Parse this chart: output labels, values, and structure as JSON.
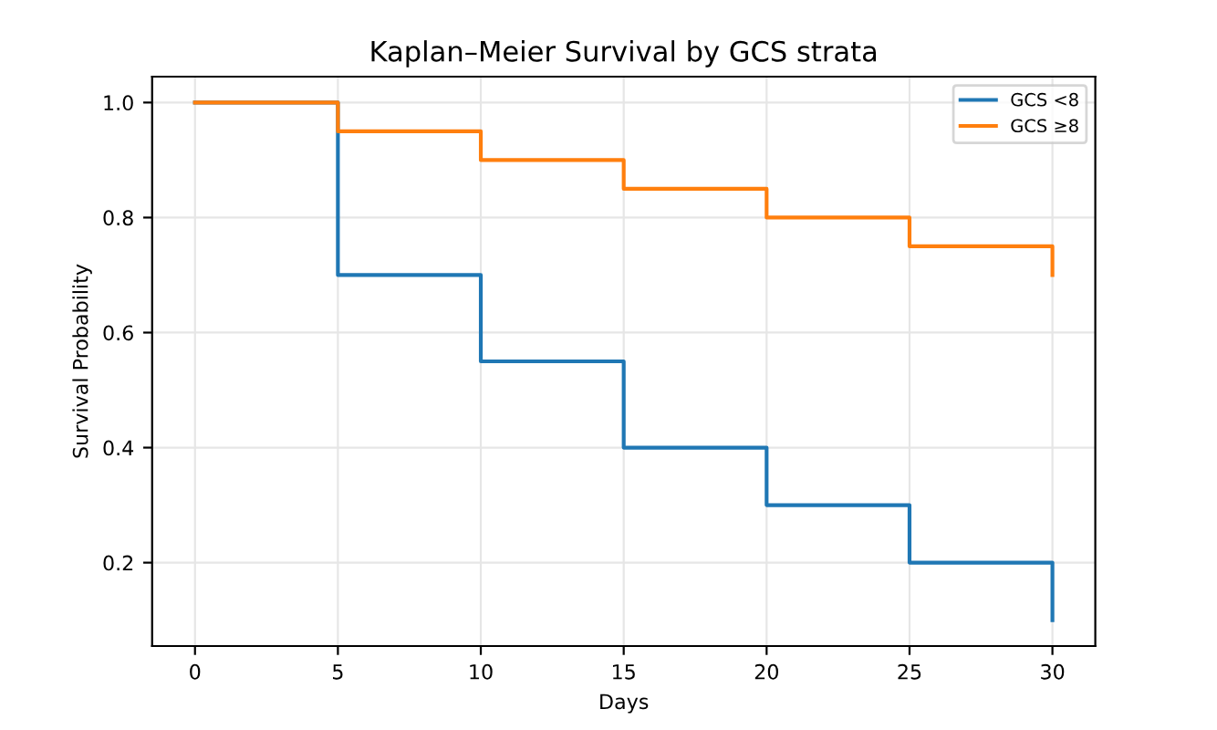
{
  "chart_data": {
    "type": "step",
    "title": "Kaplan–Meier Survival by GCS strata",
    "xlabel": "Days",
    "ylabel": "Survival Probability",
    "x": [
      0,
      5,
      10,
      15,
      20,
      25,
      30
    ],
    "series": [
      {
        "name": "GCS <8",
        "color": "#1f77b4",
        "values": [
          1.0,
          0.7,
          0.55,
          0.4,
          0.3,
          0.2,
          0.1
        ]
      },
      {
        "name": "GCS ≥8",
        "color": "#ff7f0e",
        "values": [
          1.0,
          0.95,
          0.9,
          0.85,
          0.8,
          0.75,
          0.7
        ]
      }
    ],
    "xlim": [
      -1.5,
      31.5
    ],
    "xticks": [
      0,
      5,
      10,
      15,
      20,
      25,
      30
    ],
    "ylim": [
      0.055,
      1.045
    ],
    "yticks": [
      {
        "value": 0.2,
        "label": "0.2"
      },
      {
        "value": 0.4,
        "label": "0.4"
      },
      {
        "value": 0.6,
        "label": "0.6"
      },
      {
        "value": 0.8,
        "label": "0.8"
      },
      {
        "value": 1.0,
        "label": "1.0"
      }
    ],
    "grid": true,
    "legend": "top right"
  }
}
